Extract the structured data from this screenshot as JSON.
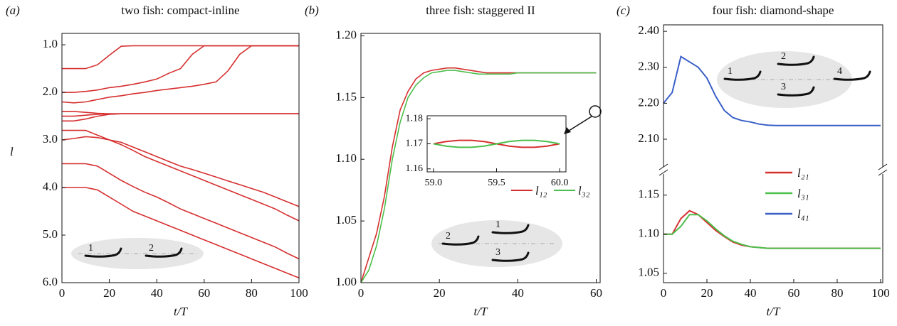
{
  "chart_data": [
    {
      "type": "line",
      "panel_label": "(a)",
      "title": "two fish: compact-inline",
      "ylabel": "l",
      "xlabel": "t/T",
      "xlim": [
        0,
        100
      ],
      "xticks": [
        0,
        20,
        40,
        60,
        80,
        100
      ],
      "ylim": [
        6.0,
        0.76
      ],
      "yticks": [
        {
          "value": 1,
          "label": "1.0"
        },
        {
          "value": 2,
          "label": "2.0"
        },
        {
          "value": 3,
          "label": "3.0"
        },
        {
          "value": 4,
          "label": "4.0"
        },
        {
          "value": 5,
          "label": "5.0"
        },
        {
          "value": 6,
          "label": "6.0"
        }
      ],
      "x": [
        0,
        5,
        10,
        15,
        20,
        25,
        30,
        35,
        40,
        45,
        50,
        55,
        60,
        65,
        70,
        75,
        80,
        85,
        90,
        95,
        100
      ],
      "series": [
        {
          "color": "#d62f2f",
          "values": [
            1.5,
            1.5,
            1.5,
            1.42,
            1.22,
            1.03,
            1.02,
            1.02,
            1.02,
            1.02,
            1.02,
            1.02,
            1.02,
            1.02,
            1.02,
            1.02,
            1.02,
            1.02,
            1.02,
            1.02,
            1.02
          ]
        },
        {
          "color": "#d62f2f",
          "values": [
            2.0,
            2.0,
            1.98,
            1.95,
            1.9,
            1.87,
            1.83,
            1.78,
            1.72,
            1.6,
            1.5,
            1.2,
            1.02,
            1.02,
            1.02,
            1.02,
            1.02,
            1.02,
            1.02,
            1.02,
            1.02
          ]
        },
        {
          "color": "#d62f2f",
          "values": [
            2.2,
            2.22,
            2.2,
            2.15,
            2.1,
            2.07,
            2.03,
            2.0,
            1.96,
            1.93,
            1.9,
            1.87,
            1.83,
            1.78,
            1.55,
            1.2,
            1.02,
            1.02,
            1.02,
            1.02,
            1.02
          ]
        },
        {
          "color": "#d62f2f",
          "values": [
            2.4,
            2.4,
            2.42,
            2.44,
            2.45,
            2.45,
            2.45,
            2.45,
            2.45,
            2.45,
            2.45,
            2.45,
            2.45,
            2.45,
            2.45,
            2.45,
            2.45,
            2.45,
            2.45,
            2.45,
            2.45
          ]
        },
        {
          "color": "#d62f2f",
          "values": [
            2.5,
            2.5,
            2.48,
            2.46,
            2.45,
            2.45,
            2.45,
            2.45,
            2.45,
            2.45,
            2.45,
            2.45,
            2.45,
            2.45,
            2.45,
            2.45,
            2.45,
            2.45,
            2.45,
            2.45,
            2.45
          ]
        },
        {
          "color": "#d62f2f",
          "values": [
            2.6,
            2.6,
            2.56,
            2.5,
            2.46,
            2.45,
            2.45,
            2.45,
            2.45,
            2.45,
            2.45,
            2.45,
            2.45,
            2.45,
            2.45,
            2.45,
            2.45,
            2.45,
            2.45,
            2.45,
            2.45
          ]
        },
        {
          "color": "#d62f2f",
          "values": [
            2.8,
            2.8,
            2.8,
            2.9,
            3.0,
            3.05,
            3.15,
            3.25,
            3.35,
            3.45,
            3.55,
            3.62,
            3.7,
            3.78,
            3.86,
            3.94,
            4.02,
            4.1,
            4.2,
            4.3,
            4.4
          ]
        },
        {
          "color": "#d62f2f",
          "values": [
            3.0,
            2.97,
            2.93,
            2.95,
            3.0,
            3.1,
            3.22,
            3.35,
            3.45,
            3.55,
            3.65,
            3.75,
            3.85,
            3.95,
            4.05,
            4.15,
            4.25,
            4.35,
            4.45,
            4.58,
            4.7
          ]
        },
        {
          "color": "#d62f2f",
          "values": [
            3.5,
            3.5,
            3.5,
            3.55,
            3.7,
            3.85,
            3.98,
            4.1,
            4.2,
            4.32,
            4.45,
            4.55,
            4.65,
            4.75,
            4.85,
            4.95,
            5.05,
            5.15,
            5.25,
            5.38,
            5.5
          ]
        },
        {
          "color": "#d62f2f",
          "values": [
            4.0,
            4.0,
            4.0,
            4.05,
            4.2,
            4.35,
            4.5,
            4.6,
            4.7,
            4.8,
            4.9,
            5.0,
            5.1,
            5.2,
            5.3,
            5.4,
            5.5,
            5.6,
            5.7,
            5.8,
            5.9
          ]
        }
      ],
      "schematic_labels": [
        "1",
        "2"
      ]
    },
    {
      "type": "line",
      "panel_label": "(b)",
      "title": "three fish: staggered II",
      "xlabel": "t/T",
      "xlim": [
        0,
        61
      ],
      "xticks": [
        0,
        20,
        40,
        60
      ],
      "ylim": [
        1.0,
        1.202
      ],
      "yticks": [
        {
          "value": 1,
          "label": "1.00"
        },
        1.05,
        {
          "value": 1.1,
          "label": "1.10"
        },
        1.15,
        {
          "value": 1.2,
          "label": "1.20"
        }
      ],
      "x": [
        0,
        2,
        4,
        6,
        8,
        10,
        12,
        14,
        16,
        18,
        20,
        22,
        24,
        26,
        28,
        30,
        32,
        34,
        36,
        38,
        40,
        42,
        44,
        46,
        48,
        50,
        52,
        54,
        56,
        58,
        60
      ],
      "series": [
        {
          "name": "l₁₂",
          "color": "#d62f2f",
          "values": [
            1.0,
            1.02,
            1.04,
            1.07,
            1.11,
            1.14,
            1.155,
            1.165,
            1.17,
            1.172,
            1.173,
            1.174,
            1.174,
            1.173,
            1.172,
            1.171,
            1.17,
            1.17,
            1.17,
            1.17,
            1.17,
            1.17,
            1.17,
            1.17,
            1.17,
            1.17,
            1.17,
            1.17,
            1.17,
            1.17,
            1.17
          ]
        },
        {
          "name": "l₃₂",
          "color": "#4cbf4c",
          "values": [
            1.0,
            1.01,
            1.03,
            1.06,
            1.1,
            1.13,
            1.15,
            1.16,
            1.166,
            1.17,
            1.171,
            1.172,
            1.172,
            1.171,
            1.17,
            1.169,
            1.169,
            1.169,
            1.169,
            1.169,
            1.17,
            1.17,
            1.17,
            1.17,
            1.17,
            1.17,
            1.17,
            1.17,
            1.17,
            1.17,
            1.17
          ]
        }
      ],
      "inset": {
        "xlim": [
          58.95,
          60.05
        ],
        "xticks": [
          {
            "value": 59,
            "label": "59.0"
          },
          59.5,
          {
            "value": 60,
            "label": "60.0"
          }
        ],
        "ylim": [
          1.1588,
          1.1812
        ],
        "yticks": [
          1.16,
          1.17,
          1.18
        ],
        "x": [
          59.0,
          59.1,
          59.2,
          59.3,
          59.4,
          59.5,
          59.6,
          59.7,
          59.8,
          59.9,
          60.0
        ],
        "series": [
          {
            "color": "#d62f2f",
            "values": [
              1.17,
              1.1709,
              1.1714,
              1.1714,
              1.1709,
              1.17,
              1.1691,
              1.1686,
              1.1686,
              1.1691,
              1.17
            ]
          },
          {
            "color": "#4cbf4c",
            "values": [
              1.17,
              1.1691,
              1.1686,
              1.1686,
              1.1691,
              1.17,
              1.1709,
              1.1714,
              1.1714,
              1.1709,
              1.17
            ]
          }
        ]
      },
      "schematic_labels": [
        "1",
        "2",
        "3"
      ]
    },
    {
      "type": "broken-line",
      "panel_label": "(c)",
      "title": "four fish: diamond-shape",
      "xlabel": "t/T",
      "xlim": [
        0,
        101
      ],
      "xticks": [
        0,
        20,
        40,
        60,
        80,
        100
      ],
      "upper": {
        "ylim": [
          2.023,
          2.418
        ],
        "yticks": [
          {
            "value": 2.1,
            "label": "2.10"
          },
          {
            "value": 2.2,
            "label": "2.20"
          },
          {
            "value": 2.3,
            "label": "2.30"
          },
          {
            "value": 2.4,
            "label": "2.40"
          }
        ]
      },
      "lower": {
        "ylim": [
          1.038,
          1.177
        ],
        "yticks": [
          1.05,
          {
            "value": 1.1,
            "label": "1.10"
          },
          1.15
        ]
      },
      "x": [
        0,
        4,
        8,
        12,
        16,
        20,
        24,
        28,
        32,
        36,
        40,
        44,
        48,
        52,
        56,
        60,
        64,
        68,
        72,
        76,
        80,
        84,
        88,
        92,
        96,
        100
      ],
      "series": [
        {
          "name": "l₂₁",
          "color": "#d62f2f",
          "axis": "lower",
          "values": [
            1.1,
            1.1,
            1.12,
            1.13,
            1.125,
            1.115,
            1.105,
            1.097,
            1.09,
            1.086,
            1.084,
            1.083,
            1.082,
            1.082,
            1.082,
            1.082,
            1.082,
            1.082,
            1.082,
            1.082,
            1.082,
            1.082,
            1.082,
            1.082,
            1.082,
            1.082
          ]
        },
        {
          "name": "l₃₁",
          "color": "#4cbf4c",
          "axis": "lower",
          "values": [
            1.1,
            1.1,
            1.11,
            1.125,
            1.125,
            1.117,
            1.107,
            1.098,
            1.091,
            1.087,
            1.084,
            1.083,
            1.082,
            1.082,
            1.082,
            1.082,
            1.082,
            1.082,
            1.082,
            1.082,
            1.082,
            1.082,
            1.082,
            1.082,
            1.082,
            1.082
          ]
        },
        {
          "name": "l₄₁",
          "color": "#3a5fc8",
          "axis": "upper",
          "values": [
            2.2,
            2.23,
            2.33,
            2.315,
            2.3,
            2.27,
            2.22,
            2.18,
            2.16,
            2.152,
            2.148,
            2.142,
            2.139,
            2.138,
            2.138,
            2.138,
            2.138,
            2.138,
            2.138,
            2.138,
            2.138,
            2.138,
            2.138,
            2.138,
            2.138,
            2.138
          ]
        }
      ],
      "schematic_labels": [
        "1",
        "2",
        "3",
        "4"
      ]
    }
  ]
}
